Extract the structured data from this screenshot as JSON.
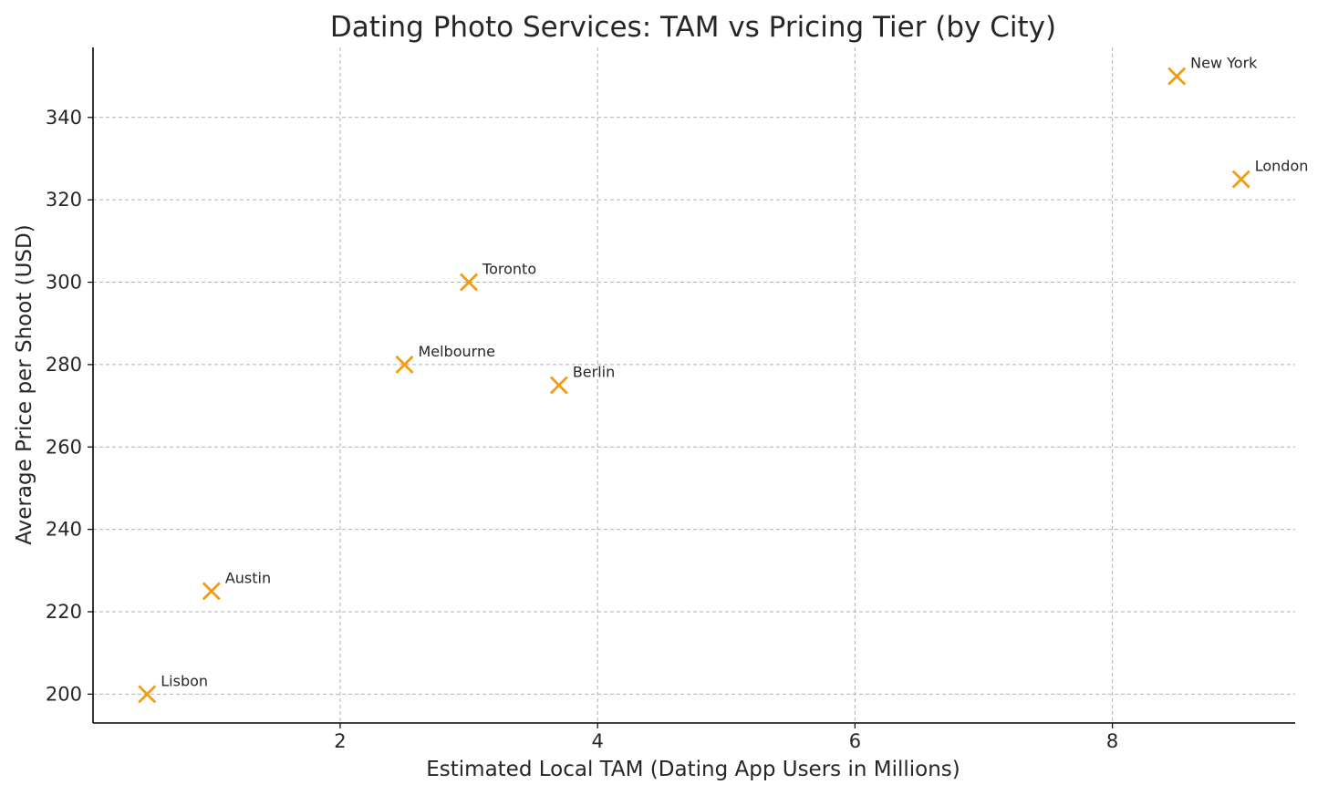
{
  "chart_data": {
    "type": "scatter",
    "title": "Dating Photo Services: TAM vs Pricing Tier (by City)",
    "xlabel": "Estimated Local TAM (Dating App Users in Millions)",
    "ylabel": "Average Price per Shoot (USD)",
    "xlim": [
      0.08,
      9.42
    ],
    "ylim": [
      193,
      357
    ],
    "xticks": [
      2,
      4,
      6,
      8
    ],
    "yticks": [
      200,
      220,
      240,
      260,
      280,
      300,
      320,
      340
    ],
    "grid": true,
    "marker": "x",
    "marker_color": "#f39c12",
    "points": [
      {
        "label": "New York",
        "x": 8.5,
        "y": 350
      },
      {
        "label": "London",
        "x": 9.0,
        "y": 325
      },
      {
        "label": "Toronto",
        "x": 3.0,
        "y": 300
      },
      {
        "label": "Melbourne",
        "x": 2.5,
        "y": 280
      },
      {
        "label": "Berlin",
        "x": 3.7,
        "y": 275
      },
      {
        "label": "Austin",
        "x": 1.0,
        "y": 225
      },
      {
        "label": "Lisbon",
        "x": 0.5,
        "y": 200
      }
    ]
  }
}
